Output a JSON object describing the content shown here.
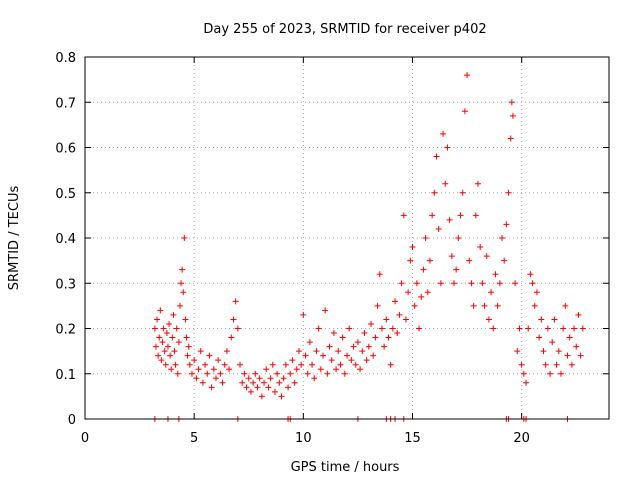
{
  "chart_data": {
    "type": "scatter",
    "title": "Day 255 of 2023, SRMTID for receiver p402",
    "xlabel": "GPS time / hours",
    "ylabel": "SRMTID / TECUs",
    "xlim": [
      0,
      24
    ],
    "ylim": [
      0,
      0.8
    ],
    "x_ticks": [
      0,
      5,
      10,
      15,
      20
    ],
    "y_ticks": [
      0,
      0.1,
      0.2,
      0.3,
      0.4,
      0.5,
      0.6,
      0.7,
      0.8
    ],
    "x_tick_labels": [
      "0",
      "5",
      "10",
      "15",
      "20"
    ],
    "y_tick_labels": [
      "0",
      "0.1",
      "0.2",
      "0.3",
      "0.4",
      "0.5",
      "0.6",
      "0.7",
      "0.8"
    ],
    "grid": true,
    "marker": "+",
    "color": "#ff0000",
    "series": [
      {
        "name": "SRMTID",
        "points": [
          [
            3.2,
            0.2
          ],
          [
            3.25,
            0.16
          ],
          [
            3.3,
            0.22
          ],
          [
            3.35,
            0.14
          ],
          [
            3.4,
            0.18
          ],
          [
            3.45,
            0.24
          ],
          [
            3.5,
            0.13
          ],
          [
            3.55,
            0.17
          ],
          [
            3.6,
            0.2
          ],
          [
            3.65,
            0.15
          ],
          [
            3.7,
            0.12
          ],
          [
            3.75,
            0.19
          ],
          [
            3.8,
            0.16
          ],
          [
            3.85,
            0.21
          ],
          [
            3.9,
            0.14
          ],
          [
            3.95,
            0.11
          ],
          [
            4.0,
            0.18
          ],
          [
            4.05,
            0.23
          ],
          [
            4.1,
            0.15
          ],
          [
            4.15,
            0.12
          ],
          [
            4.2,
            0.2
          ],
          [
            4.25,
            0.1
          ],
          [
            4.3,
            0.17
          ],
          [
            4.35,
            0.25
          ],
          [
            4.4,
            0.3
          ],
          [
            4.45,
            0.33
          ],
          [
            4.5,
            0.28
          ],
          [
            4.55,
            0.4
          ],
          [
            4.6,
            0.22
          ],
          [
            4.65,
            0.18
          ],
          [
            4.7,
            0.14
          ],
          [
            4.75,
            0.16
          ],
          [
            4.8,
            0.12
          ],
          [
            4.9,
            0.1
          ],
          [
            5.0,
            0.13
          ],
          [
            5.1,
            0.09
          ],
          [
            5.2,
            0.11
          ],
          [
            5.3,
            0.15
          ],
          [
            5.4,
            0.08
          ],
          [
            5.5,
            0.12
          ],
          [
            5.6,
            0.1
          ],
          [
            5.7,
            0.14
          ],
          [
            5.8,
            0.07
          ],
          [
            5.9,
            0.11
          ],
          [
            6.0,
            0.09
          ],
          [
            6.1,
            0.13
          ],
          [
            6.2,
            0.1
          ],
          [
            6.3,
            0.08
          ],
          [
            6.4,
            0.12
          ],
          [
            6.5,
            0.15
          ],
          [
            6.6,
            0.11
          ],
          [
            6.7,
            0.18
          ],
          [
            6.8,
            0.22
          ],
          [
            6.9,
            0.26
          ],
          [
            7.0,
            0.2
          ],
          [
            7.1,
            0.12
          ],
          [
            7.2,
            0.08
          ],
          [
            7.3,
            0.1
          ],
          [
            7.4,
            0.07
          ],
          [
            7.5,
            0.09
          ],
          [
            7.6,
            0.06
          ],
          [
            7.7,
            0.08
          ],
          [
            7.8,
            0.1
          ],
          [
            7.9,
            0.07
          ],
          [
            8.0,
            0.09
          ],
          [
            8.1,
            0.05
          ],
          [
            8.2,
            0.08
          ],
          [
            8.3,
            0.11
          ],
          [
            8.4,
            0.07
          ],
          [
            8.5,
            0.09
          ],
          [
            8.6,
            0.12
          ],
          [
            8.7,
            0.06
          ],
          [
            8.8,
            0.1
          ],
          [
            8.9,
            0.08
          ],
          [
            9.0,
            0.05
          ],
          [
            9.1,
            0.09
          ],
          [
            9.2,
            0.12
          ],
          [
            9.3,
            0.07
          ],
          [
            9.4,
            0.1
          ],
          [
            9.5,
            0.13
          ],
          [
            9.6,
            0.08
          ],
          [
            9.7,
            0.11
          ],
          [
            9.8,
            0.15
          ],
          [
            9.9,
            0.12
          ],
          [
            10.0,
            0.23
          ],
          [
            10.1,
            0.14
          ],
          [
            10.2,
            0.1
          ],
          [
            10.3,
            0.17
          ],
          [
            10.4,
            0.12
          ],
          [
            10.5,
            0.09
          ],
          [
            10.6,
            0.15
          ],
          [
            10.7,
            0.2
          ],
          [
            10.8,
            0.11
          ],
          [
            10.9,
            0.14
          ],
          [
            11.0,
            0.24
          ],
          [
            11.1,
            0.1
          ],
          [
            11.2,
            0.16
          ],
          [
            11.3,
            0.13
          ],
          [
            11.4,
            0.19
          ],
          [
            11.5,
            0.11
          ],
          [
            11.6,
            0.15
          ],
          [
            11.7,
            0.12
          ],
          [
            11.8,
            0.18
          ],
          [
            11.9,
            0.1
          ],
          [
            12.0,
            0.14
          ],
          [
            12.1,
            0.2
          ],
          [
            12.2,
            0.13
          ],
          [
            12.3,
            0.16
          ],
          [
            12.4,
            0.12
          ],
          [
            12.5,
            0.17
          ],
          [
            12.6,
            0.11
          ],
          [
            12.7,
            0.15
          ],
          [
            12.8,
            0.19
          ],
          [
            12.9,
            0.13
          ],
          [
            13.0,
            0.16
          ],
          [
            13.1,
            0.21
          ],
          [
            13.2,
            0.14
          ],
          [
            13.3,
            0.18
          ],
          [
            13.4,
            0.25
          ],
          [
            13.5,
            0.32
          ],
          [
            13.6,
            0.2
          ],
          [
            13.7,
            0.16
          ],
          [
            13.8,
            0.22
          ],
          [
            13.9,
            0.18
          ],
          [
            14.0,
            0.12
          ],
          [
            14.1,
            0.2
          ],
          [
            14.2,
            0.26
          ],
          [
            14.3,
            0.19
          ],
          [
            14.4,
            0.23
          ],
          [
            14.5,
            0.3
          ],
          [
            14.6,
            0.45
          ],
          [
            14.7,
            0.22
          ],
          [
            14.8,
            0.28
          ],
          [
            14.9,
            0.35
          ],
          [
            15.0,
            0.38
          ],
          [
            15.1,
            0.25
          ],
          [
            15.2,
            0.3
          ],
          [
            15.3,
            0.2
          ],
          [
            15.4,
            0.27
          ],
          [
            15.5,
            0.33
          ],
          [
            15.6,
            0.4
          ],
          [
            15.7,
            0.28
          ],
          [
            15.8,
            0.35
          ],
          [
            15.9,
            0.45
          ],
          [
            16.0,
            0.5
          ],
          [
            16.1,
            0.58
          ],
          [
            16.2,
            0.42
          ],
          [
            16.3,
            0.3
          ],
          [
            16.4,
            0.63
          ],
          [
            16.5,
            0.52
          ],
          [
            16.6,
            0.6
          ],
          [
            16.7,
            0.44
          ],
          [
            16.8,
            0.36
          ],
          [
            16.9,
            0.3
          ],
          [
            17.0,
            0.33
          ],
          [
            17.1,
            0.4
          ],
          [
            17.2,
            0.45
          ],
          [
            17.3,
            0.5
          ],
          [
            17.4,
            0.68
          ],
          [
            17.5,
            0.76
          ],
          [
            17.6,
            0.35
          ],
          [
            17.7,
            0.3
          ],
          [
            17.8,
            0.25
          ],
          [
            17.9,
            0.45
          ],
          [
            18.0,
            0.52
          ],
          [
            18.1,
            0.38
          ],
          [
            18.2,
            0.3
          ],
          [
            18.3,
            0.25
          ],
          [
            18.4,
            0.36
          ],
          [
            18.5,
            0.22
          ],
          [
            18.6,
            0.28
          ],
          [
            18.7,
            0.2
          ],
          [
            18.8,
            0.32
          ],
          [
            18.9,
            0.25
          ],
          [
            19.0,
            0.3
          ],
          [
            19.1,
            0.4
          ],
          [
            19.2,
            0.35
          ],
          [
            19.3,
            0.43
          ],
          [
            19.4,
            0.5
          ],
          [
            19.5,
            0.62
          ],
          [
            19.55,
            0.7
          ],
          [
            19.6,
            0.67
          ],
          [
            19.7,
            0.3
          ],
          [
            19.8,
            0.15
          ],
          [
            19.9,
            0.2
          ],
          [
            20.0,
            0.12
          ],
          [
            20.1,
            0.1
          ],
          [
            20.2,
            0.08
          ],
          [
            20.3,
            0.2
          ],
          [
            20.4,
            0.32
          ],
          [
            20.5,
            0.3
          ],
          [
            20.6,
            0.25
          ],
          [
            20.7,
            0.28
          ],
          [
            20.8,
            0.18
          ],
          [
            20.9,
            0.22
          ],
          [
            21.0,
            0.15
          ],
          [
            21.1,
            0.12
          ],
          [
            21.2,
            0.2
          ],
          [
            21.3,
            0.1
          ],
          [
            21.4,
            0.17
          ],
          [
            21.5,
            0.22
          ],
          [
            21.6,
            0.12
          ],
          [
            21.7,
            0.15
          ],
          [
            21.8,
            0.1
          ],
          [
            21.9,
            0.2
          ],
          [
            22.0,
            0.25
          ],
          [
            22.1,
            0.14
          ],
          [
            22.2,
            0.18
          ],
          [
            22.3,
            0.12
          ],
          [
            22.4,
            0.2
          ],
          [
            22.5,
            0.16
          ],
          [
            22.6,
            0.23
          ],
          [
            22.7,
            0.14
          ],
          [
            22.8,
            0.2
          ]
        ]
      },
      {
        "name": "Baseline markers",
        "points": [
          [
            3.2,
            0
          ],
          [
            3.8,
            0
          ],
          [
            4.3,
            0
          ],
          [
            7.0,
            0
          ],
          [
            9.3,
            0
          ],
          [
            9.4,
            0
          ],
          [
            12.5,
            0
          ],
          [
            13.8,
            0
          ],
          [
            14.0,
            0
          ],
          [
            14.2,
            0
          ],
          [
            14.6,
            0
          ],
          [
            19.3,
            0
          ],
          [
            19.4,
            0
          ],
          [
            20.1,
            0
          ],
          [
            20.2,
            0
          ],
          [
            22.1,
            0
          ]
        ]
      }
    ]
  }
}
